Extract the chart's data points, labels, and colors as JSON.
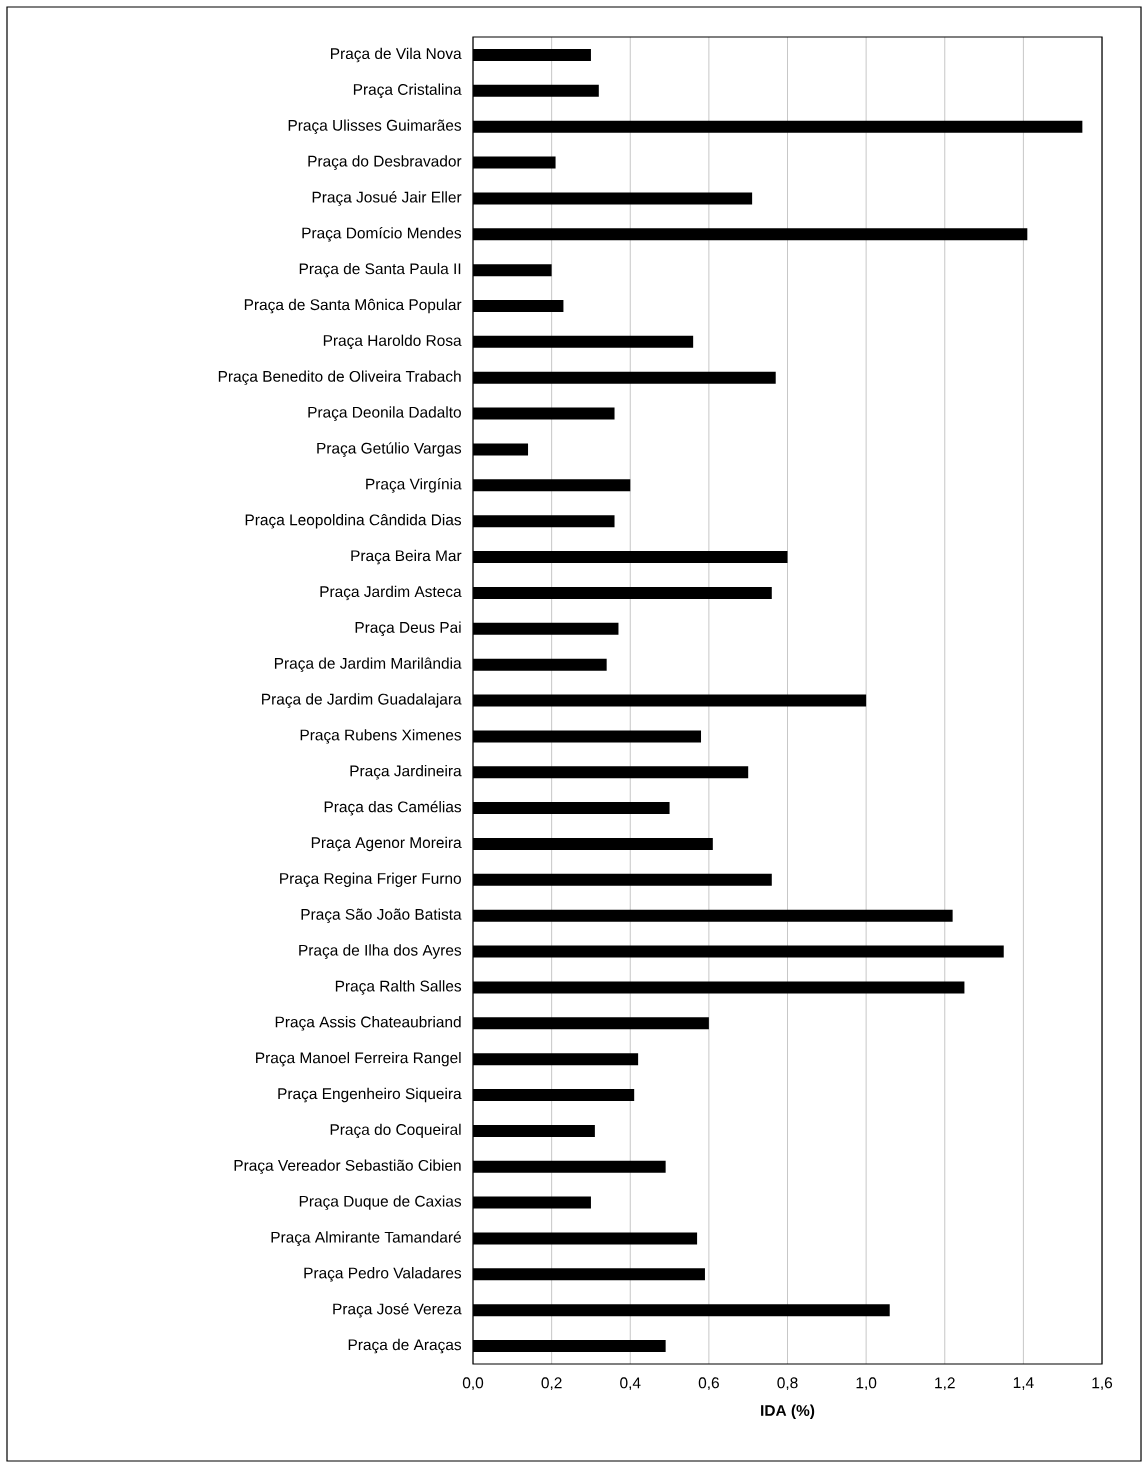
{
  "chart_data": {
    "type": "bar",
    "orientation": "horizontal",
    "xlabel": "**IDA (%)**",
    "categories": [
      "Praça de Vila Nova",
      "Praça Cristalina",
      "Praça Ulisses Guimarães",
      "Praça do Desbravador",
      "Praça Josué Jair Eller",
      "Praça Domício Mendes",
      "Praça de Santa Paula II",
      "Praça de Santa Mônica Popular",
      "Praça Haroldo Rosa",
      "Praça Benedito de Oliveira Trabach",
      "Praça Deonila Dadalto",
      "Praça Getúlio Vargas",
      "Praça Virgínia",
      "Praça Leopoldina Cândida Dias",
      "Praça Beira Mar",
      "Praça Jardim Asteca",
      "Praça Deus Pai",
      "Praça de Jardim Marilândia",
      "Praça de Jardim Guadalajara",
      "Praça Rubens Ximenes",
      "Praça Jardineira",
      "Praça das Camélias",
      "Praça Agenor Moreira",
      "Praça Regina Friger Furno",
      "Praça São João Batista",
      "Praça de Ilha dos Ayres",
      "Praça Ralth Salles",
      "Praça Assis Chateaubriand",
      "Praça Manoel Ferreira Rangel",
      "Praça Engenheiro Siqueira",
      "Praça do Coqueiral",
      "Praça Vereador Sebastião Cibien",
      "Praça Duque de Caxias",
      "Praça Almirante Tamandaré",
      "Praça Pedro Valadares",
      "Praça José Vereza",
      "Praça de Araças"
    ],
    "values": [
      0.3,
      0.32,
      1.55,
      0.21,
      0.71,
      1.41,
      0.2,
      0.23,
      0.56,
      0.77,
      0.36,
      0.14,
      0.4,
      0.36,
      0.8,
      0.76,
      0.37,
      0.34,
      1.0,
      0.58,
      0.7,
      0.5,
      0.61,
      0.76,
      1.22,
      1.35,
      1.25,
      0.6,
      0.42,
      0.41,
      0.31,
      0.49,
      0.3,
      0.57,
      0.59,
      1.06,
      0.49
    ],
    "color": "#000000",
    "xlim": [
      0,
      1.6
    ],
    "xticks": [
      {
        "value": 0,
        "label": "0,0"
      },
      {
        "value": 0.2,
        "label": "0,2"
      },
      {
        "value": 0.4,
        "label": "0,4"
      },
      {
        "value": 0.6,
        "label": "0,6"
      },
      {
        "value": 0.8,
        "label": "0,8"
      },
      {
        "value": 1.0,
        "label": "1,0"
      },
      {
        "value": 1.2,
        "label": "1,2"
      },
      {
        "value": 1.4,
        "label": "1,4"
      },
      {
        "value": 1.6,
        "label": "1,6"
      }
    ],
    "grid": "x"
  }
}
